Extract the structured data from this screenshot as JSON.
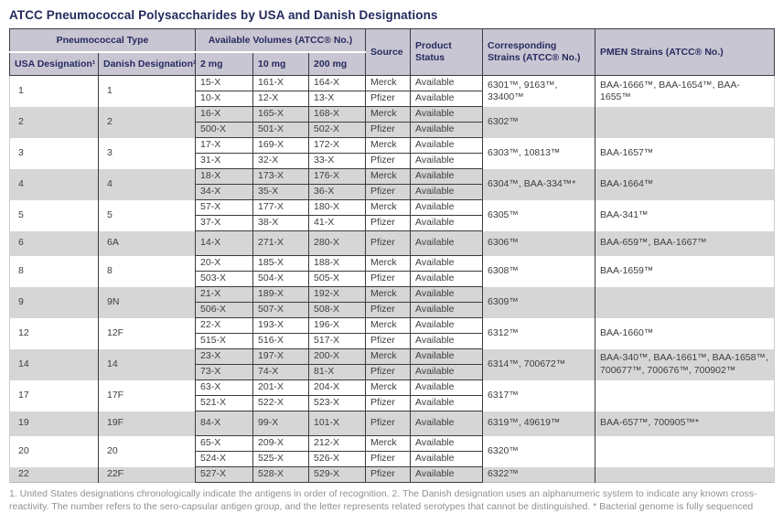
{
  "title": "ATCC Pneumococcal Polysaccharides by USA and Danish Designations",
  "colors": {
    "title_navy": "#262a5e",
    "header_background": "#c9c6d3",
    "row_shade_grey": "#d6d6d6"
  },
  "table": {
    "header": {
      "pneumococcal_type": "Pneumococcal Type",
      "available_volumes": "Available Volumes (ATCC® No.)",
      "usa_designation": "USA Designation¹",
      "danish_designation": "Danish Designation²",
      "mg2": "2 mg",
      "mg10": "10 mg",
      "mg200": "200 mg",
      "source": "Source",
      "product_status": "Product Status",
      "corresponding_strains": "Corresponding Strains (ATCC® No.)",
      "pmen_strains": "PMEN Strains (ATCC® No.)"
    },
    "groups": [
      {
        "usa": "1",
        "danish": "1",
        "shaded": false,
        "rows": [
          {
            "mg2": "15-X",
            "mg10": "161-X",
            "mg200": "164-X",
            "source": "Merck",
            "status": "Available"
          },
          {
            "mg2": "10-X",
            "mg10": "12-X",
            "mg200": "13-X",
            "source": "Pfizer",
            "status": "Available"
          }
        ],
        "corresponding": "6301™, 9163™, 33400™",
        "pmen": "BAA-1666™, BAA-1654™, BAA-1655™"
      },
      {
        "usa": "2",
        "danish": "2",
        "shaded": true,
        "rows": [
          {
            "mg2": "16-X",
            "mg10": "165-X",
            "mg200": "168-X",
            "source": "Merck",
            "status": "Available"
          },
          {
            "mg2": "500-X",
            "mg10": "501-X",
            "mg200": "502-X",
            "source": "Pfizer",
            "status": "Available"
          }
        ],
        "corresponding": "6302™",
        "pmen": ""
      },
      {
        "usa": "3",
        "danish": "3",
        "shaded": false,
        "rows": [
          {
            "mg2": "17-X",
            "mg10": "169-X",
            "mg200": "172-X",
            "source": "Merck",
            "status": "Available"
          },
          {
            "mg2": "31-X",
            "mg10": "32-X",
            "mg200": "33-X",
            "source": "Pfizer",
            "status": "Available"
          }
        ],
        "corresponding": "6303™, 10813™",
        "pmen": "BAA-1657™"
      },
      {
        "usa": "4",
        "danish": "4",
        "shaded": true,
        "rows": [
          {
            "mg2": "18-X",
            "mg10": "173-X",
            "mg200": "176-X",
            "source": "Merck",
            "status": "Available"
          },
          {
            "mg2": "34-X",
            "mg10": "35-X",
            "mg200": "36-X",
            "source": "Pfizer",
            "status": "Available"
          }
        ],
        "corresponding": "6304™, BAA-334™*",
        "pmen": "BAA-1664™"
      },
      {
        "usa": "5",
        "danish": "5",
        "shaded": false,
        "rows": [
          {
            "mg2": "57-X",
            "mg10": "177-X",
            "mg200": "180-X",
            "source": "Merck",
            "status": "Available"
          },
          {
            "mg2": "37-X",
            "mg10": "38-X",
            "mg200": "41-X",
            "source": "Pfizer",
            "status": "Available"
          }
        ],
        "corresponding": "6305™",
        "pmen": "BAA-341™"
      },
      {
        "usa": "6",
        "danish": "6A",
        "shaded": true,
        "tall": true,
        "rows": [
          {
            "mg2": "14-X",
            "mg10": "271-X",
            "mg200": "280-X",
            "source": "Pfizer",
            "status": "Available"
          }
        ],
        "corresponding": "6306™",
        "pmen": "BAA-659™, BAA-1667™"
      },
      {
        "usa": "8",
        "danish": "8",
        "shaded": false,
        "rows": [
          {
            "mg2": "20-X",
            "mg10": "185-X",
            "mg200": "188-X",
            "source": "Merck",
            "status": "Available"
          },
          {
            "mg2": "503-X",
            "mg10": "504-X",
            "mg200": "505-X",
            "source": "Pfizer",
            "status": "Available"
          }
        ],
        "corresponding": "6308™",
        "pmen": "BAA-1659™"
      },
      {
        "usa": "9",
        "danish": "9N",
        "shaded": true,
        "rows": [
          {
            "mg2": "21-X",
            "mg10": "189-X",
            "mg200": "192-X",
            "source": "Merck",
            "status": "Available"
          },
          {
            "mg2": "506-X",
            "mg10": "507-X",
            "mg200": "508-X",
            "source": "Pfizer",
            "status": "Available"
          }
        ],
        "corresponding": "6309™",
        "pmen": ""
      },
      {
        "usa": "12",
        "danish": "12F",
        "shaded": false,
        "rows": [
          {
            "mg2": "22-X",
            "mg10": "193-X",
            "mg200": "196-X",
            "source": "Merck",
            "status": "Available"
          },
          {
            "mg2": "515-X",
            "mg10": "516-X",
            "mg200": "517-X",
            "source": "Pfizer",
            "status": "Available"
          }
        ],
        "corresponding": "6312™",
        "pmen": "BAA-1660™"
      },
      {
        "usa": "14",
        "danish": "14",
        "shaded": true,
        "rows": [
          {
            "mg2": "23-X",
            "mg10": "197-X",
            "mg200": "200-X",
            "source": "Merck",
            "status": "Available"
          },
          {
            "mg2": "73-X",
            "mg10": "74-X",
            "mg200": "81-X",
            "source": "Pfizer",
            "status": "Available"
          }
        ],
        "corresponding": "6314™, 700672™",
        "pmen": "BAA-340™, BAA-1661™, BAA-1658™, 700677™, 700676™, 700902™"
      },
      {
        "usa": "17",
        "danish": "17F",
        "shaded": false,
        "rows": [
          {
            "mg2": "63-X",
            "mg10": "201-X",
            "mg200": "204-X",
            "source": "Merck",
            "status": "Available"
          },
          {
            "mg2": "521-X",
            "mg10": "522-X",
            "mg200": "523-X",
            "source": "Pfizer",
            "status": "Available"
          }
        ],
        "corresponding": "6317™",
        "pmen": ""
      },
      {
        "usa": "19",
        "danish": "19F",
        "shaded": true,
        "tall": true,
        "rows": [
          {
            "mg2": "84-X",
            "mg10": "99-X",
            "mg200": "101-X",
            "source": "Pfizer",
            "status": "Available"
          }
        ],
        "corresponding": "6319™, 49619™",
        "pmen": "BAA-657™, 700905™*"
      },
      {
        "usa": "20",
        "danish": "20",
        "shaded": false,
        "rows": [
          {
            "mg2": "65-X",
            "mg10": "209-X",
            "mg200": "212-X",
            "source": "Merck",
            "status": "Available"
          },
          {
            "mg2": "524-X",
            "mg10": "525-X",
            "mg200": "526-X",
            "source": "Pfizer",
            "status": "Available"
          }
        ],
        "corresponding": "6320™",
        "pmen": ""
      },
      {
        "usa": "22",
        "danish": "22F",
        "shaded": true,
        "rows": [
          {
            "mg2": "527-X",
            "mg10": "528-X",
            "mg200": "529-X",
            "source": "Pfizer",
            "status": "Available"
          }
        ],
        "corresponding": "6322™",
        "pmen": ""
      }
    ]
  },
  "footnote": "1. United States designations chronologically indicate the antigens in order of recognition. 2. The Danish designation uses an alphanumeric system to indicate any known cross-reactivity. The number refers to the sero-capsular antigen group, and the letter represents related serotypes that cannot be distinguished. * Bacterial genome is fully sequenced"
}
